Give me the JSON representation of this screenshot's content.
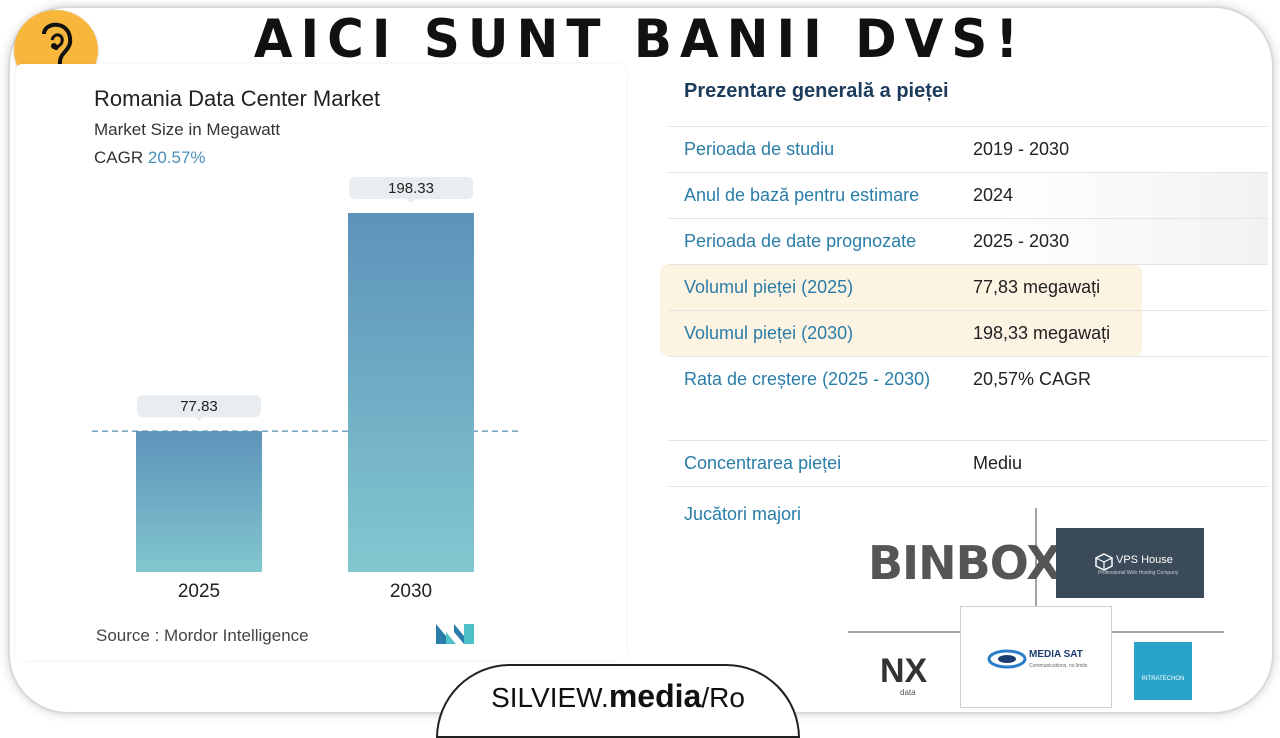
{
  "banner": {
    "title": "AICI SUNT BANII DVS!"
  },
  "chart_data": {
    "type": "bar",
    "title": "Romania Data Center Market",
    "subtitle": "Market Size in Megawatt",
    "cagr_label": "CAGR",
    "cagr_value": "20.57%",
    "categories": [
      "2025",
      "2030"
    ],
    "values": [
      77.83,
      198.33
    ],
    "value_labels": [
      "77.83",
      "198.33"
    ],
    "ylim": [
      0,
      198.33
    ],
    "reference_line": 77.83,
    "source": "Source :  Mordor Intelligence",
    "colors": {
      "bar_top": "#5d93ba",
      "bar_bottom": "#82c7cf",
      "label_bg": "#e9edf0",
      "ref_line": "#5d8fb0"
    }
  },
  "overview": {
    "title": "Prezentare generală a pieței",
    "rows": [
      {
        "key": "Perioada de studiu",
        "value": "2019 - 2030"
      },
      {
        "key": "Anul de bază pentru estimare",
        "value": "2024"
      },
      {
        "key": "Perioada de date prognozate",
        "value": "2025 - 2030"
      },
      {
        "key": "Volumul pieței (2025)",
        "value": "77,83 megawați"
      },
      {
        "key": "Volumul pieței (2030)",
        "value": "198,33 megawați"
      },
      {
        "key": "Rata de creștere (2025 - 2030)",
        "value": "20,57% CAGR"
      },
      {
        "key": "Concentrarea pieței",
        "value": "Mediu"
      }
    ],
    "players_label": "Jucători majori"
  },
  "logos": {
    "binbox": "BINBOX",
    "vps_name": "VPS House",
    "vps_sub": "Professional Web Hosting Company",
    "mediasat_name": "MEDIA SAT",
    "mediasat_sub": "Communications, no limits",
    "nx": "NX",
    "nx_sub": "data",
    "intra": "INTRATECHON"
  },
  "footer": {
    "brand": "SILVIEW.",
    "brand_bold": "media",
    "suffix": "/Ro"
  }
}
